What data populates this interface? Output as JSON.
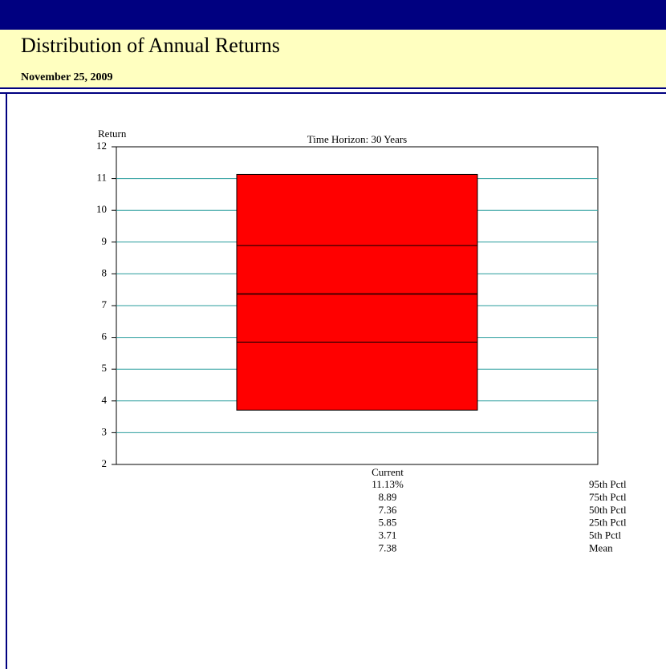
{
  "header": {
    "title": "Distribution of Annual Returns",
    "date": "November 25, 2009"
  },
  "chart_data": {
    "type": "box",
    "title": "Time Horizon: 30 Years",
    "y_label": "Return",
    "categories": [
      "Current"
    ],
    "color": "#ff0000",
    "grid_color": "#2a9d9d",
    "ylim": [
      2,
      12
    ],
    "yticks": [
      2,
      3,
      4,
      5,
      6,
      7,
      8,
      9,
      10,
      11,
      12
    ],
    "grid": true,
    "stats": {
      "labels": [
        "95th Pctl",
        "75th Pctl",
        "50th Pctl",
        "25th Pctl",
        "5th Pctl",
        "Mean"
      ],
      "values": [
        11.13,
        8.89,
        7.36,
        5.85,
        3.71,
        7.38
      ],
      "value_labels": [
        "11.13%",
        "8.89",
        "7.36",
        "5.85",
        "3.71",
        "7.38"
      ]
    }
  }
}
